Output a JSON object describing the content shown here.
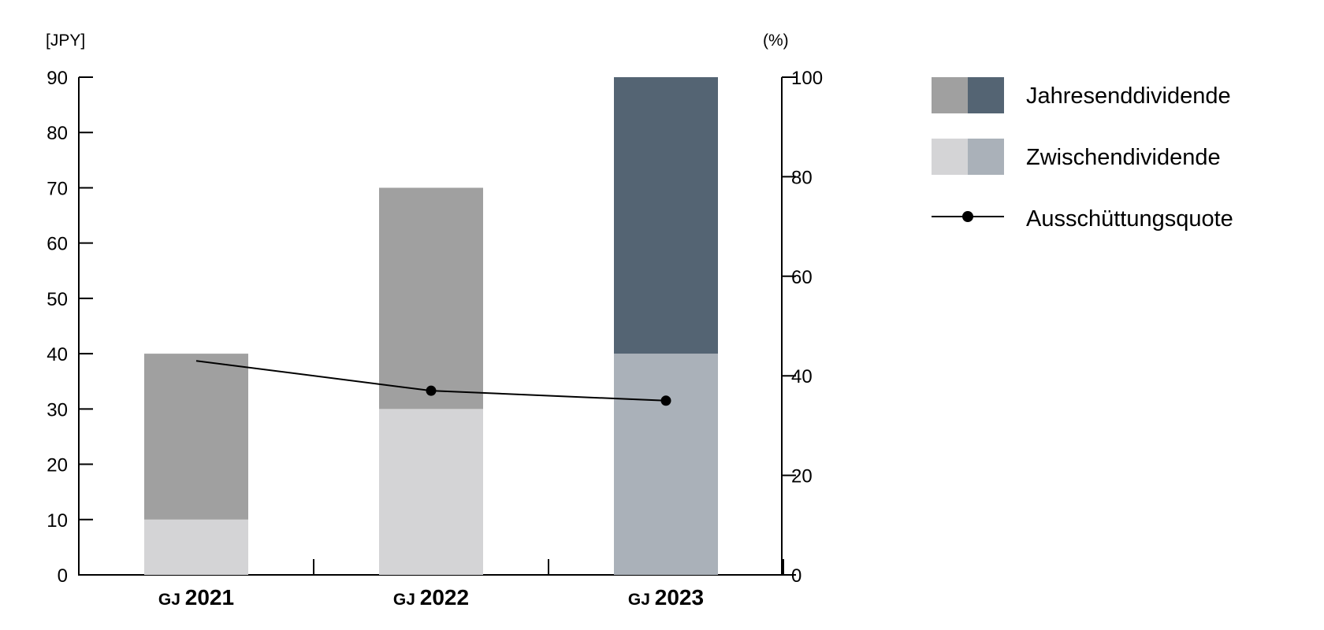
{
  "chart_data": {
    "type": "bar",
    "stacked": true,
    "categories": [
      {
        "prefix": "GJ",
        "year": "2021"
      },
      {
        "prefix": "GJ",
        "year": "2022"
      },
      {
        "prefix": "GJ",
        "year": "2023"
      }
    ],
    "left_axis": {
      "unit": "[JPY]",
      "ylim": [
        0,
        90
      ],
      "ticks": [
        "0",
        "10",
        "20",
        "30",
        "40",
        "50",
        "60",
        "70",
        "80",
        "90"
      ]
    },
    "right_axis": {
      "unit": "(%)",
      "ylim": [
        0,
        100
      ],
      "ticks": [
        "0",
        "20",
        "40",
        "60",
        "80",
        "100"
      ]
    },
    "series": [
      {
        "name": "Zwischendividende",
        "axis": "left",
        "values": [
          10,
          30,
          40
        ],
        "colors": [
          "#d4d4d6",
          "#d4d4d6",
          "#aab1b9"
        ]
      },
      {
        "name": "Jahresenddividende",
        "axis": "left",
        "values": [
          30,
          40,
          50
        ],
        "colors": [
          "#a0a0a0",
          "#a0a0a0",
          "#546473"
        ]
      },
      {
        "name": "Ausschüttungsquote",
        "axis": "right",
        "type": "line",
        "values": [
          43,
          37,
          35
        ],
        "markers": [
          false,
          true,
          true
        ],
        "color": "#000000"
      }
    ],
    "legend": {
      "placement": "right",
      "entries": [
        {
          "label": "Jahresenddividende",
          "kind": "swatch",
          "colors": [
            "#a0a0a0",
            "#546473"
          ]
        },
        {
          "label": "Zwischendividende",
          "kind": "swatch",
          "colors": [
            "#d4d4d6",
            "#aab1b9"
          ]
        },
        {
          "label": "Ausschüttungsquote",
          "kind": "line",
          "colors": [
            "#000000"
          ]
        }
      ]
    },
    "grid": false
  }
}
